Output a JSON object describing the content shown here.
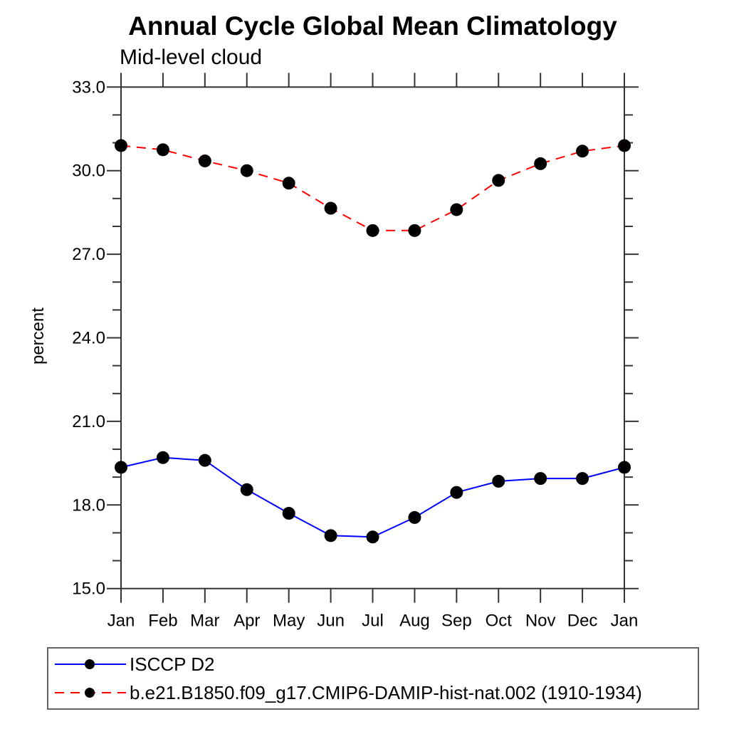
{
  "chart_data": {
    "type": "line",
    "title": "Annual Cycle Global Mean Climatology",
    "subtitle": "Mid-level cloud",
    "ylabel": "percent",
    "categories": [
      "Jan",
      "Feb",
      "Mar",
      "Apr",
      "May",
      "Jun",
      "Jul",
      "Aug",
      "Sep",
      "Oct",
      "Nov",
      "Dec",
      "Jan"
    ],
    "ylim": [
      15.0,
      33.0
    ],
    "ytick_labels": [
      "33.0",
      "30.0",
      "27.0",
      "24.0",
      "21.0",
      "18.0",
      "15.0"
    ],
    "ytick_major_step": 3.0,
    "ytick_minor_step": 1.0,
    "grid": false,
    "legend_position": "bottom-left",
    "colors": {
      "axis": "#333333",
      "marker": "#000000",
      "isccp": "#0000ff",
      "model": "#ff0000"
    },
    "series": [
      {
        "name": "ISCCP D2",
        "color": "#0000ff",
        "line_style": "solid",
        "marker": "filled-circle",
        "values": [
          19.35,
          19.7,
          19.6,
          18.55,
          17.7,
          16.9,
          16.85,
          17.55,
          18.45,
          18.85,
          18.95,
          18.95,
          19.35
        ]
      },
      {
        "name": "b.e21.B1850.f09_g17.CMIP6-DAMIP-hist-nat.002 (1910-1934)",
        "color": "#ff0000",
        "line_style": "dashed",
        "marker": "filled-circle",
        "values": [
          30.9,
          30.75,
          30.35,
          30.0,
          29.55,
          28.65,
          27.85,
          27.85,
          28.6,
          29.65,
          30.25,
          30.7,
          30.9
        ]
      }
    ]
  }
}
